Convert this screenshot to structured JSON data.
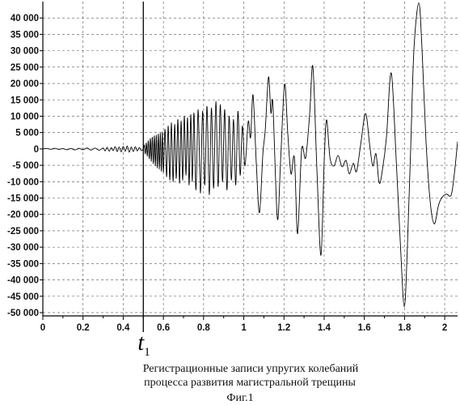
{
  "figure": {
    "caption_line_1": "Регистрационные записи упругих колебаний",
    "caption_line_2": "процесса развития магистральной трещины",
    "label": "Фиг.1"
  },
  "chart_data": {
    "type": "line",
    "xlim": [
      0,
      2.064
    ],
    "ylim": [
      -51000,
      45000
    ],
    "grid": true,
    "x_ticks": {
      "values": [
        0,
        0.2,
        0.4,
        0.6,
        0.8,
        1,
        1.2,
        1.4,
        1.6,
        1.8,
        2
      ],
      "labels": [
        "0",
        "0.2",
        "0.4",
        "0.6",
        "0.8",
        "1",
        "1.2",
        "1.4",
        "1.6",
        "1.8",
        "2"
      ]
    },
    "y_ticks": {
      "values": [
        40000,
        35000,
        30000,
        25000,
        20000,
        15000,
        10000,
        5000,
        0,
        -5000,
        -10000,
        -15000,
        -20000,
        -25000,
        -30000,
        -35000,
        -40000,
        -45000,
        -50000
      ],
      "labels": [
        "40 000",
        "35 000",
        "30 000",
        "25 000",
        "20 000",
        "15 000",
        "10 000",
        "5 000",
        "0",
        "-5 000",
        "-10 000",
        "-15 000",
        "-20 000",
        "-25 000",
        "-30 000",
        "-35 000",
        "-40 000",
        "-45 000",
        "-50 000"
      ]
    },
    "annotations": [
      {
        "type": "vertical-line",
        "x": 0.5,
        "text": "t",
        "subscript": "1"
      }
    ],
    "series": [
      {
        "color": "#000000",
        "x": [
          0,
          0.02,
          0.04,
          0.06,
          0.08,
          0.1,
          0.12,
          0.14,
          0.16,
          0.18,
          0.2,
          0.22,
          0.24,
          0.26,
          0.28,
          0.3,
          0.31,
          0.32,
          0.33,
          0.34,
          0.35,
          0.36,
          0.37,
          0.38,
          0.39,
          0.4,
          0.41,
          0.42,
          0.43,
          0.44,
          0.45,
          0.46,
          0.47,
          0.48,
          0.49,
          0.5,
          0.505,
          0.51,
          0.515,
          0.52,
          0.525,
          0.53,
          0.535,
          0.54,
          0.545,
          0.55,
          0.555,
          0.56,
          0.565,
          0.57,
          0.575,
          0.58,
          0.585,
          0.59,
          0.595,
          0.6,
          0.608,
          0.616,
          0.624,
          0.632,
          0.64,
          0.648,
          0.656,
          0.664,
          0.672,
          0.68,
          0.688,
          0.696,
          0.704,
          0.712,
          0.72,
          0.728,
          0.736,
          0.744,
          0.752,
          0.762,
          0.773,
          0.784,
          0.795,
          0.806,
          0.817,
          0.828,
          0.839,
          0.85,
          0.861,
          0.872,
          0.883,
          0.894,
          0.905,
          0.916,
          0.927,
          0.938,
          0.949,
          0.96,
          0.971,
          0.982,
          0.993,
          1.006,
          1.022,
          1.034,
          1.046,
          1.062,
          1.078,
          1.095,
          1.107,
          1.123,
          1.135,
          1.145,
          1.167,
          1.183,
          1.203,
          1.219,
          1.235,
          1.252,
          1.268,
          1.288,
          1.308,
          1.328,
          1.344,
          1.364,
          1.384,
          1.4,
          1.412,
          1.429,
          1.449,
          1.469,
          1.489,
          1.509,
          1.525,
          1.545,
          1.561,
          1.581,
          1.606,
          1.626,
          1.642,
          1.658,
          1.674,
          1.69,
          1.71,
          1.734,
          1.759,
          1.779,
          1.799,
          1.815,
          1.831,
          1.847,
          1.871,
          1.887,
          1.907,
          1.928,
          1.948,
          1.968,
          1.984,
          2.008,
          2.032,
          2.048,
          2.064
        ],
        "y": [
          0,
          150,
          -100,
          200,
          -150,
          100,
          -250,
          150,
          -300,
          200,
          -250,
          300,
          -350,
          250,
          -400,
          300,
          -600,
          500,
          -700,
          400,
          -500,
          700,
          -800,
          600,
          -900,
          800,
          -700,
          900,
          -1000,
          600,
          -800,
          700,
          -600,
          400,
          -500,
          0,
          1200,
          -1500,
          1800,
          -2200,
          2500,
          -3000,
          3200,
          -3800,
          3600,
          -4500,
          4000,
          -5200,
          4200,
          -5800,
          4600,
          -6200,
          4800,
          -6800,
          5200,
          -7200,
          6000,
          -8500,
          7000,
          -9500,
          8000,
          -10000,
          7500,
          -9000,
          9000,
          -10500,
          8500,
          -9500,
          10000,
          -8000,
          9500,
          -11000,
          10500,
          -10000,
          11000,
          -12500,
          12000,
          -13500,
          11500,
          -11000,
          13000,
          -14000,
          12500,
          -12000,
          14500,
          -11500,
          13500,
          -10000,
          12000,
          -12500,
          10000,
          -9500,
          9000,
          -11000,
          11500,
          -8000,
          7000,
          -5200,
          8400,
          3500,
          16500,
          -4000,
          -19500,
          -1500,
          5900,
          22000,
          11000,
          13500,
          -21200,
          -3900,
          19700,
          4700,
          -7600,
          -2700,
          -25900,
          -200,
          -2700,
          10800,
          25100,
          -6400,
          -32500,
          -3900,
          8900,
          -2700,
          -5200,
          -2000,
          -5400,
          -3500,
          -7600,
          -4400,
          -6900,
          1000,
          10800,
          1500,
          -5200,
          -1500,
          -10400,
          -6400,
          3500,
          23200,
          -3900,
          -28600,
          -48300,
          -28600,
          1000,
          30600,
          44600,
          30600,
          2200,
          -16300,
          -22900,
          -17500,
          -15000,
          -13800,
          -14100,
          -7600,
          2200
        ]
      }
    ]
  }
}
